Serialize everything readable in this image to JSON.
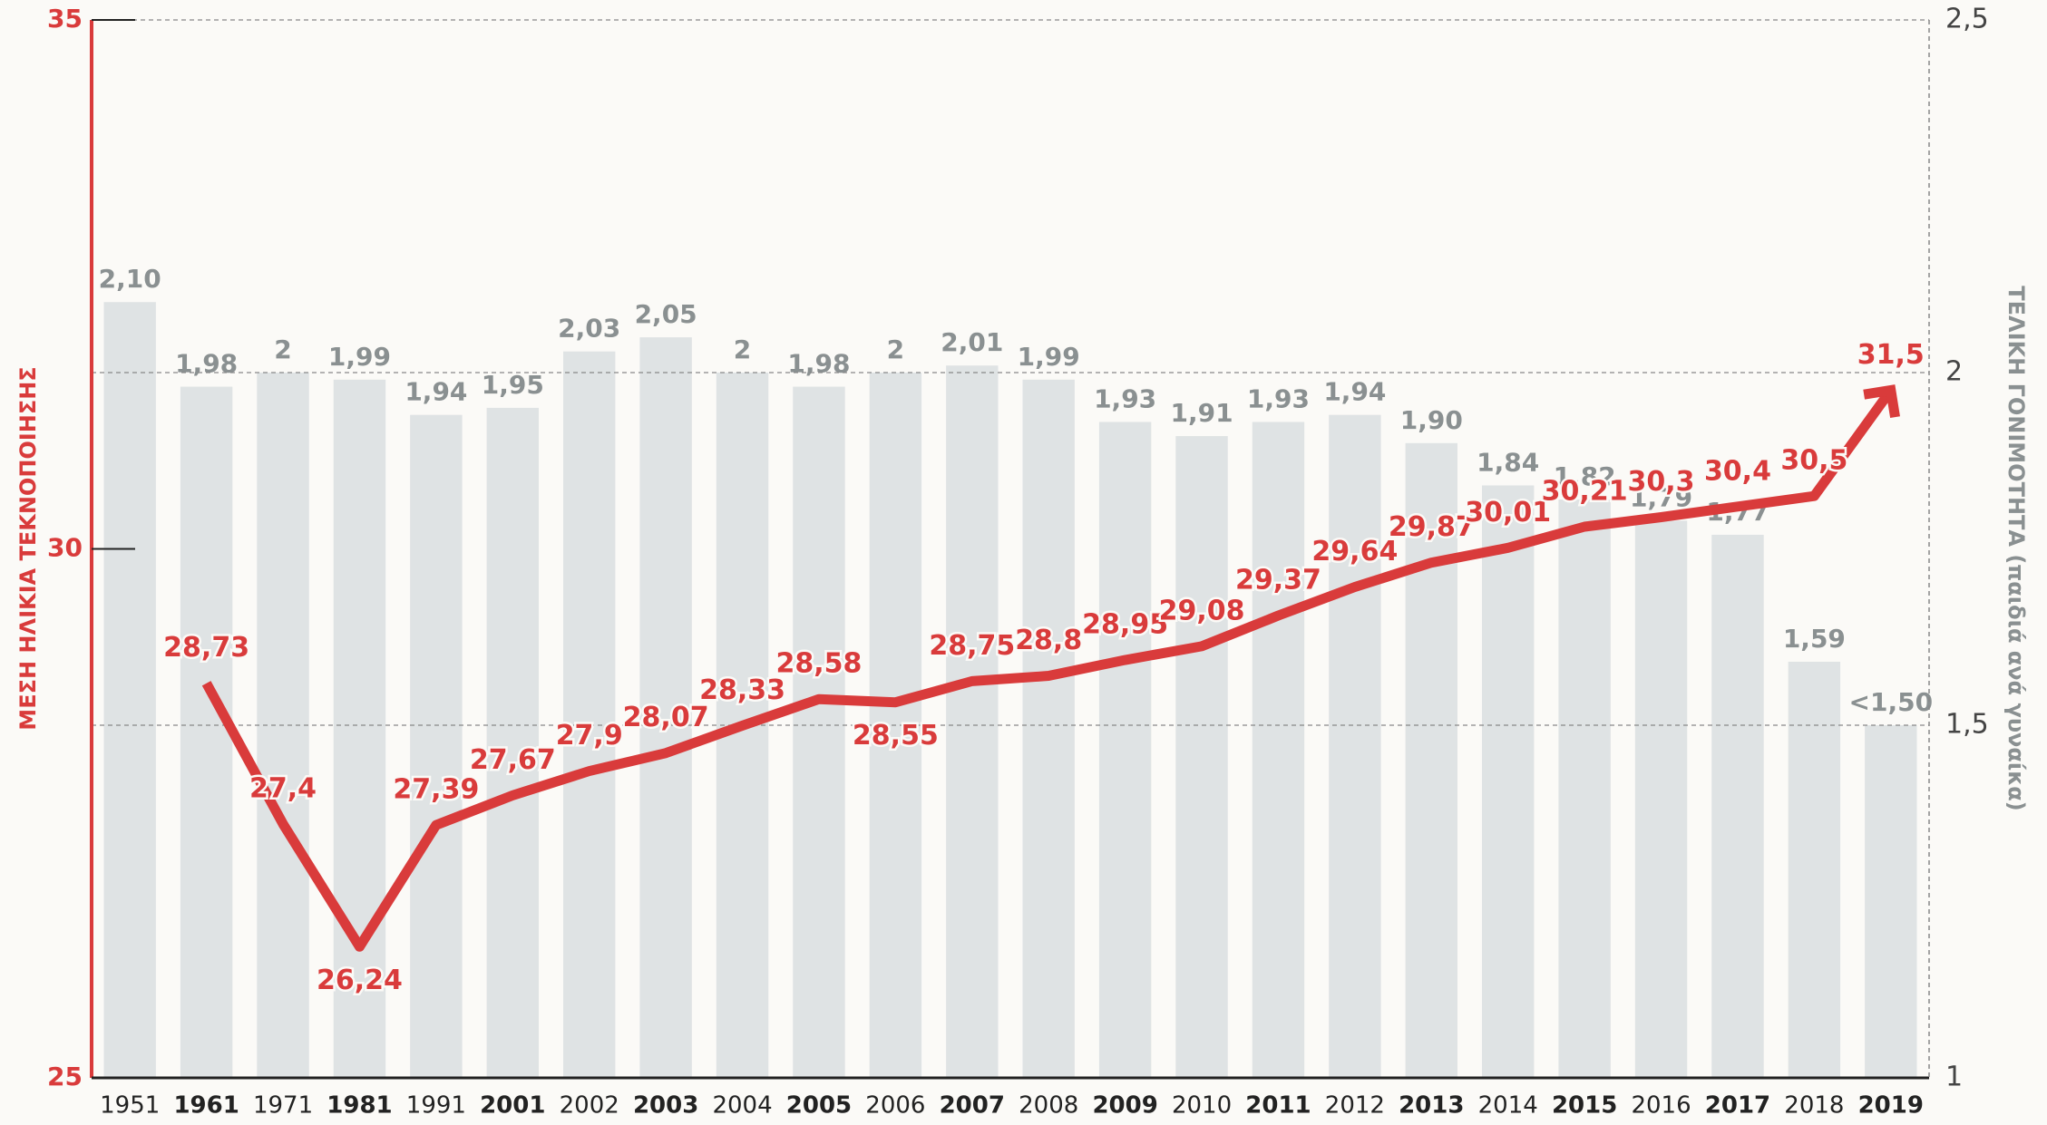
{
  "chart_data": {
    "type": "bar-line",
    "ylabel": "ΜΕΣΗ ΗΛΙΚΙΑ ΤΕΚΝΟΠΟΙΗΣΗΣ",
    "y2label": "ΤΕΛΙΚΗ ΓΟΝΙΜΟΤΗΤΑ (παιδιά ανά γυναίκα)",
    "categories": [
      "1951",
      "1961",
      "1971",
      "1981",
      "1991",
      "2001",
      "2002",
      "2003",
      "2004",
      "2005",
      "2006",
      "2007",
      "2008",
      "2009",
      "2010",
      "2011",
      "2012",
      "2013",
      "2014",
      "2015",
      "2016",
      "2017",
      "2018",
      "2019"
    ],
    "series": [
      {
        "type": "bar",
        "axis": "y2",
        "color": "#dfe3e4",
        "values": [
          2.1,
          1.98,
          2,
          1.99,
          1.94,
          1.95,
          2.03,
          2.05,
          2,
          1.98,
          2,
          2.01,
          1.99,
          1.93,
          1.91,
          1.93,
          1.94,
          1.9,
          1.84,
          1.82,
          1.79,
          1.77,
          1.59,
          1.5
        ],
        "value_labels": [
          "2,10",
          "1,98",
          "2",
          "1,99",
          "1,94",
          "1,95",
          "2,03",
          "2,05",
          "2",
          "1,98",
          "2",
          "2,01",
          "1,99",
          "1,93",
          "1,91",
          "1,93",
          "1,94",
          "1,90",
          "1,84",
          "1,82",
          "1,79",
          "1,77",
          "1,59",
          "<1,50"
        ]
      },
      {
        "type": "line",
        "axis": "y",
        "color": "#d93b3b",
        "values": [
          null,
          28.73,
          27.4,
          26.24,
          27.39,
          27.67,
          27.9,
          28.07,
          28.33,
          28.58,
          28.55,
          28.75,
          28.8,
          28.95,
          29.08,
          29.37,
          29.64,
          29.87,
          30.01,
          30.21,
          30.3,
          30.4,
          30.5,
          31.5
        ],
        "value_labels": [
          null,
          "28,73",
          "27,4",
          "26,24",
          "27,39",
          "27,67",
          "27,9",
          "28,07",
          "28,33",
          "28,58",
          "28,55",
          "28,75",
          "28,8",
          "28,95",
          "29,08",
          "29,37",
          "29,64",
          "29,87",
          "30,01",
          "30,21",
          "30,3",
          "30,4",
          "30,5",
          "31,5"
        ]
      }
    ],
    "ylim": [
      25,
      35
    ],
    "yticks": [
      25,
      30,
      35
    ],
    "y2lim": [
      1,
      2.5
    ],
    "y2ticks": [
      1,
      {
        "value": 1.5,
        "label": "1,5"
      },
      2,
      {
        "value": 2.5,
        "label": "2,5"
      }
    ]
  }
}
